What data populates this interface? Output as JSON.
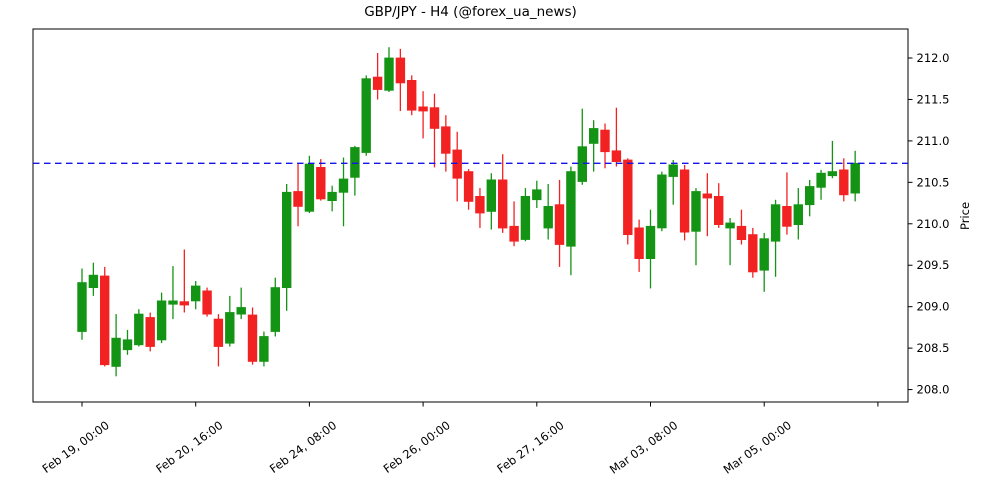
{
  "figure": {
    "title": "GBP/JPY - H4 (@forex_ua_news)"
  },
  "chart_data": {
    "type": "candlestick",
    "symbol": "GBP/JPY",
    "timeframe": "H4",
    "title": "GBP/JPY - H4 (@forex_ua_news)",
    "ylabel": "Price",
    "grid": false,
    "legend": null,
    "y_ticks": [
      208.0,
      208.5,
      209.0,
      209.5,
      210.0,
      210.5,
      211.0,
      211.5,
      212.0
    ],
    "ylim": [
      207.85,
      212.35
    ],
    "x_ticks": [
      {
        "index": 0,
        "label": "Feb 19, 00:00"
      },
      {
        "index": 10,
        "label": "Feb 20, 16:00"
      },
      {
        "index": 20,
        "label": "Feb 24, 08:00"
      },
      {
        "index": 30,
        "label": "Feb 26, 00:00"
      },
      {
        "index": 40,
        "label": "Feb 27, 16:00"
      },
      {
        "index": 50,
        "label": "Mar 03, 08:00"
      },
      {
        "index": 60,
        "label": "Mar 05, 00:00"
      },
      {
        "index": 70,
        "label": ""
      }
    ],
    "hline": {
      "price": 210.73,
      "style": "dashed",
      "color": "#1515E8"
    },
    "colors": {
      "up": "#149414",
      "down": "#F32222",
      "hline": "#1515E8",
      "axis": "#000000",
      "background": "#FFFFFF"
    },
    "candle_columns": [
      "open",
      "high",
      "low",
      "close"
    ],
    "candles": [
      [
        208.7,
        209.46,
        208.6,
        209.29
      ],
      [
        209.23,
        209.53,
        209.13,
        209.38
      ],
      [
        209.37,
        209.48,
        208.28,
        208.3
      ],
      [
        208.28,
        208.91,
        208.16,
        208.62
      ],
      [
        208.48,
        208.72,
        208.42,
        208.6
      ],
      [
        208.54,
        208.97,
        208.52,
        208.91
      ],
      [
        208.87,
        208.93,
        208.46,
        208.52
      ],
      [
        208.6,
        209.17,
        208.56,
        209.07
      ],
      [
        209.03,
        209.49,
        208.85,
        209.07
      ],
      [
        209.06,
        209.69,
        208.93,
        209.02
      ],
      [
        209.07,
        209.31,
        208.97,
        209.25
      ],
      [
        209.19,
        209.23,
        208.88,
        208.91
      ],
      [
        208.85,
        208.91,
        208.28,
        208.52
      ],
      [
        208.56,
        209.13,
        208.52,
        208.93
      ],
      [
        208.91,
        209.23,
        208.85,
        208.99
      ],
      [
        208.9,
        208.99,
        208.3,
        208.34
      ],
      [
        208.34,
        208.7,
        208.28,
        208.64
      ],
      [
        208.7,
        209.35,
        208.64,
        209.23
      ],
      [
        209.23,
        210.48,
        208.95,
        210.38
      ],
      [
        210.39,
        210.72,
        209.97,
        210.21
      ],
      [
        210.15,
        210.82,
        210.13,
        210.72
      ],
      [
        210.68,
        210.78,
        210.28,
        210.3
      ],
      [
        210.28,
        210.46,
        210.15,
        210.38
      ],
      [
        210.38,
        210.8,
        209.97,
        210.54
      ],
      [
        210.56,
        210.94,
        210.34,
        210.92
      ],
      [
        210.86,
        211.79,
        210.82,
        211.75
      ],
      [
        211.77,
        212.06,
        211.5,
        211.62
      ],
      [
        211.61,
        212.13,
        211.59,
        212.0
      ],
      [
        212.0,
        212.11,
        211.36,
        211.7
      ],
      [
        211.73,
        211.79,
        211.31,
        211.37
      ],
      [
        211.41,
        211.6,
        211.03,
        211.36
      ],
      [
        211.4,
        211.57,
        210.68,
        211.15
      ],
      [
        211.17,
        211.31,
        210.63,
        210.85
      ],
      [
        210.89,
        211.11,
        210.27,
        210.55
      ],
      [
        210.63,
        210.66,
        210.17,
        210.27
      ],
      [
        210.33,
        210.43,
        209.95,
        210.13
      ],
      [
        210.15,
        210.61,
        209.93,
        210.53
      ],
      [
        210.53,
        210.84,
        209.89,
        209.95
      ],
      [
        209.97,
        210.27,
        209.73,
        209.79
      ],
      [
        209.81,
        210.43,
        209.79,
        210.33
      ],
      [
        210.29,
        210.52,
        210.19,
        210.41
      ],
      [
        209.95,
        210.48,
        209.81,
        210.21
      ],
      [
        210.23,
        210.53,
        209.48,
        209.75
      ],
      [
        209.73,
        210.69,
        209.38,
        210.63
      ],
      [
        210.51,
        211.39,
        210.47,
        210.93
      ],
      [
        210.97,
        211.25,
        210.63,
        211.15
      ],
      [
        211.13,
        211.21,
        210.67,
        210.87
      ],
      [
        210.88,
        211.4,
        210.69,
        210.75
      ],
      [
        210.77,
        210.79,
        209.75,
        209.87
      ],
      [
        209.95,
        210.05,
        209.42,
        209.58
      ],
      [
        209.58,
        210.17,
        209.22,
        209.97
      ],
      [
        209.95,
        210.63,
        209.91,
        210.59
      ],
      [
        210.57,
        210.77,
        210.23,
        210.71
      ],
      [
        210.65,
        210.71,
        209.8,
        209.9
      ],
      [
        209.91,
        210.43,
        209.5,
        210.39
      ],
      [
        210.36,
        210.61,
        209.85,
        210.31
      ],
      [
        210.33,
        210.49,
        209.95,
        209.99
      ],
      [
        209.95,
        210.07,
        209.5,
        210.01
      ],
      [
        209.97,
        210.17,
        209.75,
        209.81
      ],
      [
        209.87,
        209.95,
        209.35,
        209.42
      ],
      [
        209.44,
        209.89,
        209.18,
        209.82
      ],
      [
        209.79,
        210.29,
        209.36,
        210.23
      ],
      [
        210.21,
        210.62,
        209.87,
        209.97
      ],
      [
        209.99,
        210.43,
        209.81,
        210.23
      ],
      [
        210.23,
        210.53,
        210.09,
        210.45
      ],
      [
        210.44,
        210.65,
        210.29,
        210.61
      ],
      [
        210.58,
        211.0,
        210.55,
        210.63
      ],
      [
        210.65,
        210.79,
        210.27,
        210.35
      ],
      [
        210.37,
        210.88,
        210.27,
        210.73
      ]
    ]
  }
}
